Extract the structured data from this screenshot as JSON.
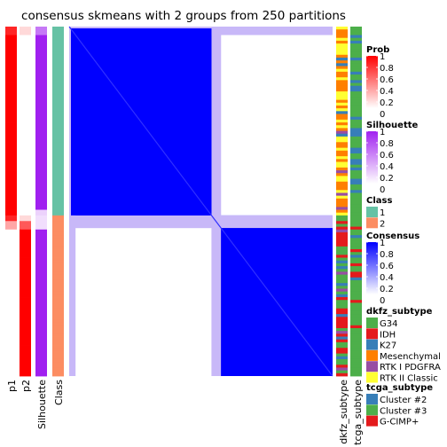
{
  "chart_data": {
    "type": "heatmap",
    "title": "consensus skmeans with 2 groups from 250 partitions",
    "n_samples": 124,
    "left_annotation_labels": [
      "p1",
      "p2",
      "Silhouette",
      "Class"
    ],
    "right_annotation_labels": [
      "dkfz_subtype",
      "tcga_subtype"
    ],
    "group_sizes": [
      67,
      57
    ],
    "block_values": {
      "within": 1.0,
      "between": 0.0,
      "boundary": 0.55
    },
    "legends": [
      {
        "title": "Prob",
        "ticks": [
          "1",
          "0.8",
          "0.6",
          "0.4",
          "0.2",
          "0"
        ],
        "low": "#ffffff",
        "high": "#ff0000"
      },
      {
        "title": "Silhouette",
        "ticks": [
          "1",
          "0.8",
          "0.6",
          "0.4",
          "0.2",
          "0"
        ],
        "low": "#ffffff",
        "high": "#a020f0"
      },
      {
        "title": "Class",
        "items": [
          {
            "label": "1",
            "color": "#66c2a5"
          },
          {
            "label": "2",
            "color": "#fc8d62"
          }
        ]
      },
      {
        "title": "Consensus",
        "ticks": [
          "1",
          "0.8",
          "0.6",
          "0.4",
          "0.2",
          "0"
        ],
        "low": "#ffffff",
        "high": "#0000ff"
      },
      {
        "title": "dkfz_subtype",
        "items": [
          {
            "label": "G34",
            "color": "#4daf4a"
          },
          {
            "label": "IDH",
            "color": "#e41a1c"
          },
          {
            "label": "K27",
            "color": "#377eb8"
          },
          {
            "label": "Mesenchymal",
            "color": "#ff7f00"
          },
          {
            "label": "RTK I PDGFRA",
            "color": "#984ea3"
          },
          {
            "label": "RTK II Classic",
            "color": "#ffff33"
          }
        ]
      },
      {
        "title": "tcga_subtype",
        "items": [
          {
            "label": "Cluster #2",
            "color": "#377eb8"
          },
          {
            "label": "Cluster #3",
            "color": "#4daf4a"
          },
          {
            "label": "G-CIMP+",
            "color": "#e41a1c"
          }
        ]
      }
    ]
  }
}
